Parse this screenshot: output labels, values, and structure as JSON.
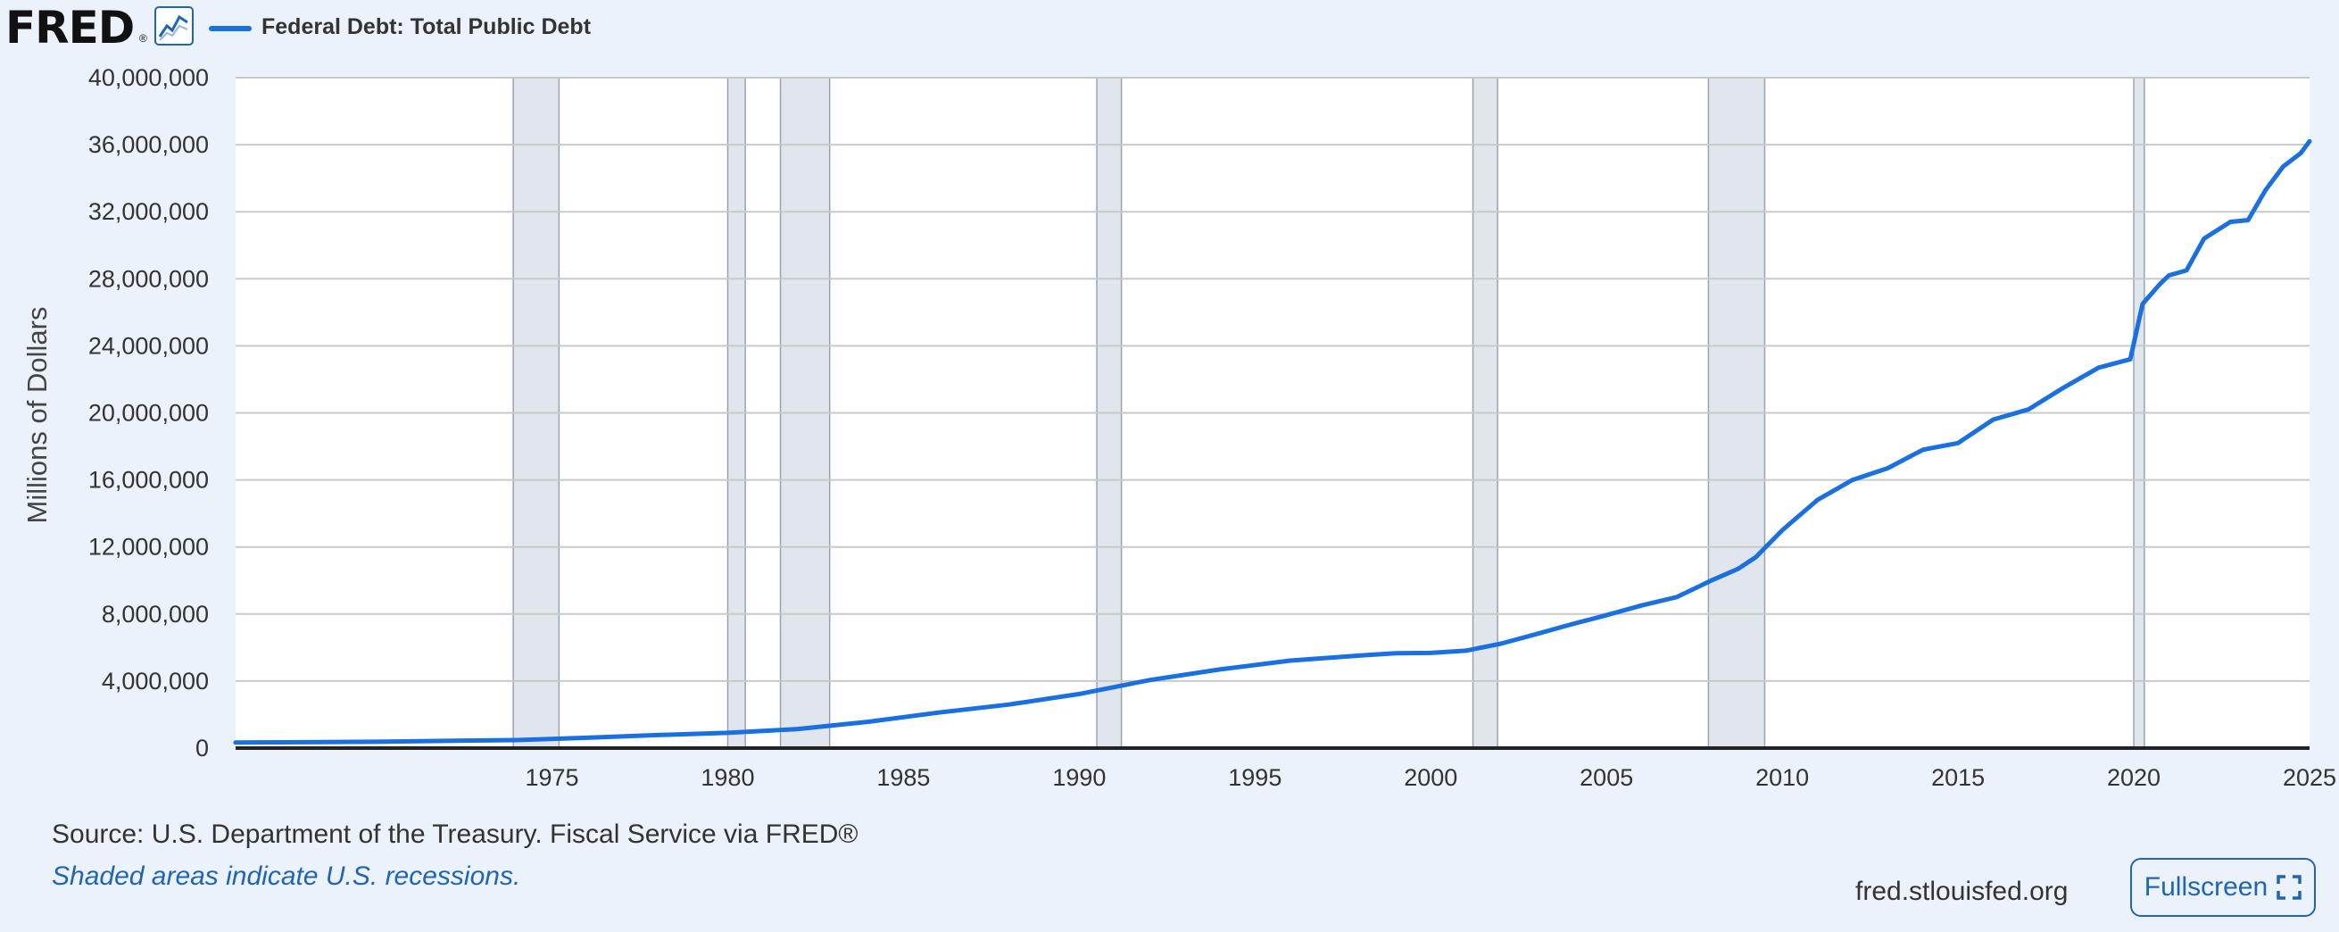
{
  "header": {
    "logo_text": "FRED",
    "logo_reg": "®",
    "series_title": "Federal Debt: Total Public Debt",
    "logo_icon": "line-graph-icon"
  },
  "colors": {
    "line": "#1a70e0",
    "recession_shade": "#e1e6ec",
    "grid": "#c9c9c9",
    "axis": "#222222"
  },
  "chart_data": {
    "type": "line",
    "title": "Federal Debt: Total Public Debt",
    "ylabel": "Millions of Dollars",
    "xlabel": "",
    "xlim": [
      1966.0,
      2025.0
    ],
    "ylim": [
      0,
      40000000
    ],
    "y_ticks": [
      0,
      4000000,
      8000000,
      12000000,
      16000000,
      20000000,
      24000000,
      28000000,
      32000000,
      36000000,
      40000000
    ],
    "y_tick_labels": [
      "0",
      "4,000,000",
      "8,000,000",
      "12,000,000",
      "16,000,000",
      "20,000,000",
      "24,000,000",
      "28,000,000",
      "32,000,000",
      "36,000,000",
      "40,000,000"
    ],
    "x_ticks": [
      1975,
      1980,
      1985,
      1990,
      1995,
      2000,
      2005,
      2010,
      2015,
      2020,
      2025
    ],
    "x_tick_labels": [
      "1975",
      "1980",
      "1985",
      "1990",
      "1995",
      "2000",
      "2005",
      "2010",
      "2015",
      "2020",
      "2025"
    ],
    "grid": true,
    "recessions": [
      [
        1973.9,
        1975.2
      ],
      [
        1980.0,
        1980.5
      ],
      [
        1981.5,
        1982.9
      ],
      [
        1990.5,
        1991.2
      ],
      [
        2001.2,
        2001.9
      ],
      [
        2007.9,
        2009.5
      ],
      [
        2020.0,
        2020.3
      ]
    ],
    "series": [
      {
        "name": "Federal Debt: Total Public Debt",
        "x": [
          1966,
          1968,
          1970,
          1972,
          1974,
          1976,
          1978,
          1980,
          1982,
          1984,
          1986,
          1988,
          1990,
          1992,
          1994,
          1996,
          1998,
          1999,
          2000,
          2001,
          2002,
          2003,
          2004,
          2005,
          2006,
          2007,
          2008,
          2008.75,
          2009.25,
          2010,
          2011,
          2012,
          2013,
          2014,
          2015,
          2016,
          2017,
          2018,
          2019,
          2019.9,
          2020.25,
          2020.75,
          2021,
          2021.5,
          2022,
          2022.75,
          2023.25,
          2023.75,
          2024.25,
          2024.75,
          2025
        ],
        "values": [
          330000,
          350000,
          380000,
          430000,
          480000,
          620000,
          780000,
          910000,
          1140000,
          1570000,
          2120000,
          2600000,
          3230000,
          4060000,
          4690000,
          5220000,
          5530000,
          5660000,
          5680000,
          5810000,
          6230000,
          6800000,
          7380000,
          7930000,
          8510000,
          9010000,
          10020000,
          10700000,
          11400000,
          13000000,
          14800000,
          16000000,
          16700000,
          17800000,
          18200000,
          19600000,
          20200000,
          21500000,
          22700000,
          23200000,
          26500000,
          27700000,
          28200000,
          28500000,
          30400000,
          31400000,
          31500000,
          33300000,
          34700000,
          35500000,
          36200000
        ]
      }
    ]
  },
  "footer": {
    "source": "Source: U.S. Department of the Treasury. Fiscal Service via FRED®",
    "recession_note": "Shaded areas indicate U.S. recessions.",
    "site": "fred.stlouisfed.org",
    "fullscreen_label": "Fullscreen",
    "fullscreen_icon": "fullscreen-icon"
  }
}
